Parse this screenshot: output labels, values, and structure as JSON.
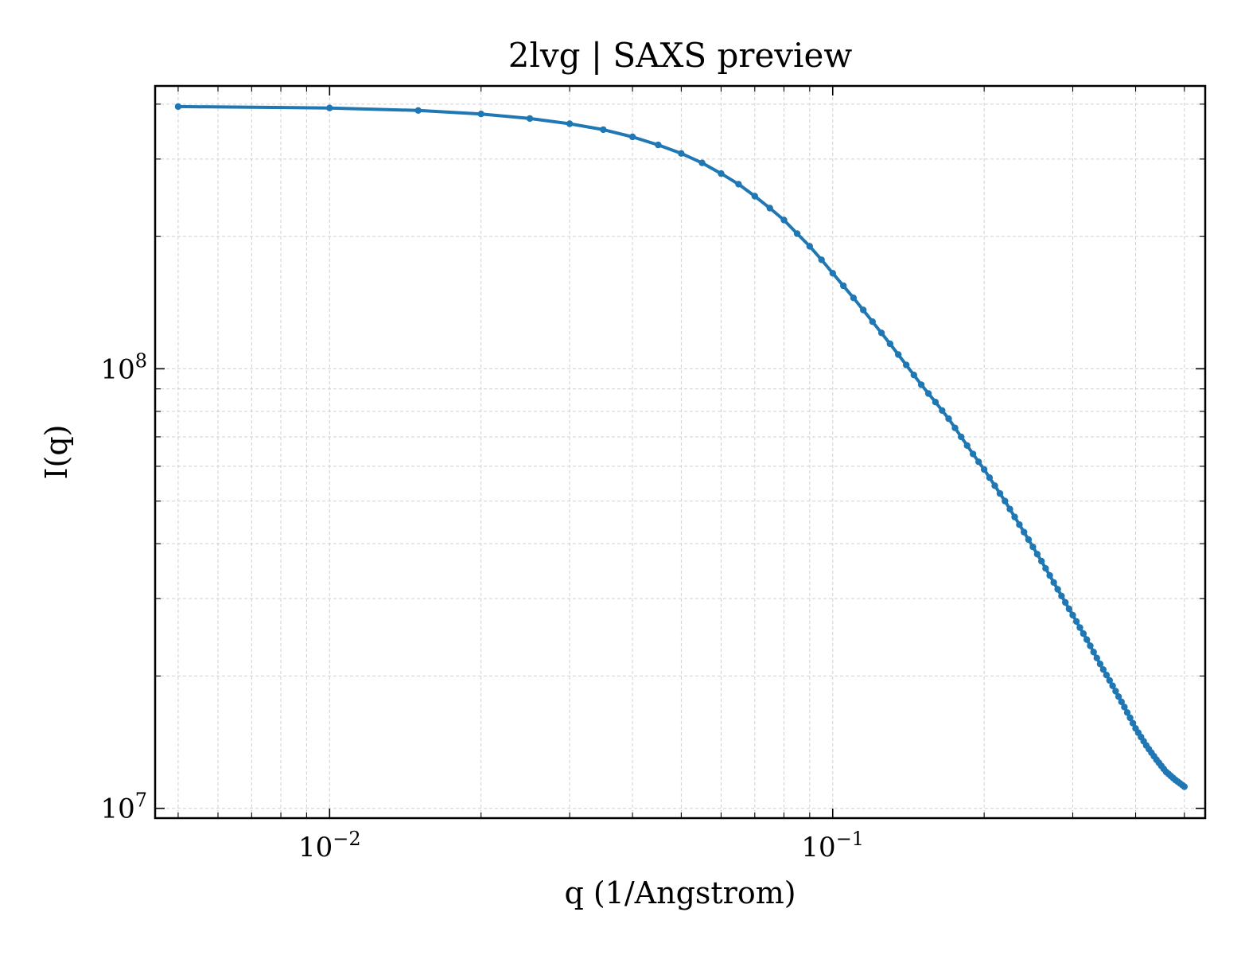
{
  "chart_data": {
    "type": "line",
    "title": "2lvg | SAXS preview",
    "xlabel": "q (1/Angstrom)",
    "ylabel": "I(q)",
    "x_scale": "log",
    "y_scale": "log",
    "xlim": [
      0.0045,
      0.55
    ],
    "ylim": [
      9500000.0,
      440000000.0
    ],
    "grid": true,
    "color": "#1f77b4",
    "x_ticks": [
      {
        "value": 0.01,
        "base": "10",
        "exp": "−2"
      },
      {
        "value": 0.1,
        "base": "10",
        "exp": "−1"
      }
    ],
    "y_ticks": [
      {
        "value": 10000000.0,
        "base": "10",
        "exp": "7"
      },
      {
        "value": 100000000.0,
        "base": "10",
        "exp": "8"
      }
    ],
    "series": [
      {
        "x": [
          0.005,
          0.01,
          0.015,
          0.02,
          0.025,
          0.03,
          0.035,
          0.04,
          0.045,
          0.05,
          0.055,
          0.06,
          0.065,
          0.07,
          0.075,
          0.08,
          0.085,
          0.09,
          0.095,
          0.1,
          0.11,
          0.12,
          0.13,
          0.14,
          0.15,
          0.16,
          0.17,
          0.18,
          0.19,
          0.2,
          0.22,
          0.24,
          0.26,
          0.28,
          0.3,
          0.32,
          0.34,
          0.36,
          0.38,
          0.4,
          0.42,
          0.44,
          0.46,
          0.48,
          0.5
        ],
        "y": [
          395000000,
          392000000,
          387000000,
          380000000,
          371000000,
          361000000,
          350000000,
          337000000,
          323000000,
          309000000,
          294000000,
          278000000,
          263000000,
          247000000,
          232000000,
          218000000,
          203000000,
          190000000,
          177000000,
          165000000,
          145000000,
          128000000,
          114000000,
          102000000,
          92000000,
          84000000,
          77000000,
          70000000,
          64000000,
          59000000,
          50000000,
          42500000,
          36500000,
          31500000,
          27500000,
          24200000,
          21300000,
          19000000,
          17000000,
          15200000,
          13900000,
          12900000,
          12100000,
          11600000,
          11200000
        ]
      }
    ]
  }
}
